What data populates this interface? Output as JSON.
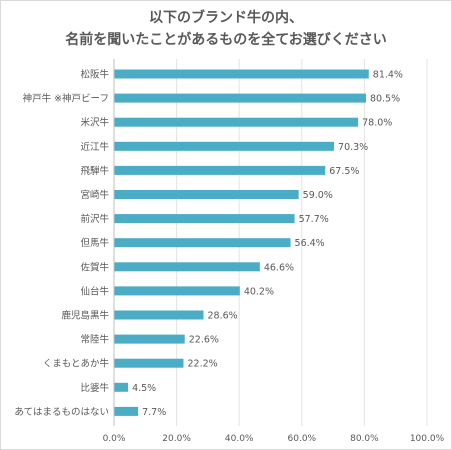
{
  "chart_data": {
    "type": "bar",
    "orientation": "horizontal",
    "title_lines": [
      "以下のブランド牛の内、",
      "名前を聞いたことがあるものを全てお選びください"
    ],
    "categories": [
      "松阪牛",
      "神戸牛 ※神戸ビーフ",
      "米沢牛",
      "近江牛",
      "飛騨牛",
      "宮崎牛",
      "前沢牛",
      "但馬牛",
      "佐賀牛",
      "仙台牛",
      "鹿児島黒牛",
      "常陸牛",
      "くまもとあか牛",
      "比婆牛",
      "あてはまるものはない"
    ],
    "values": [
      81.4,
      80.5,
      78.0,
      70.3,
      67.5,
      59.0,
      57.7,
      56.4,
      46.6,
      40.2,
      28.6,
      22.6,
      22.2,
      4.5,
      7.7
    ],
    "value_labels": [
      "81.4%",
      "80.5%",
      "78.0%",
      "70.3%",
      "67.5%",
      "59.0%",
      "57.7%",
      "56.4%",
      "46.6%",
      "40.2%",
      "28.6%",
      "22.6%",
      "22.2%",
      "4.5%",
      "7.7%"
    ],
    "xlim": [
      0,
      100
    ],
    "x_ticks": [
      "0.0%",
      "20.0%",
      "40.0%",
      "60.0%",
      "80.0%",
      "100.0%"
    ],
    "bar_color": "#4bacc6",
    "grid": true
  }
}
